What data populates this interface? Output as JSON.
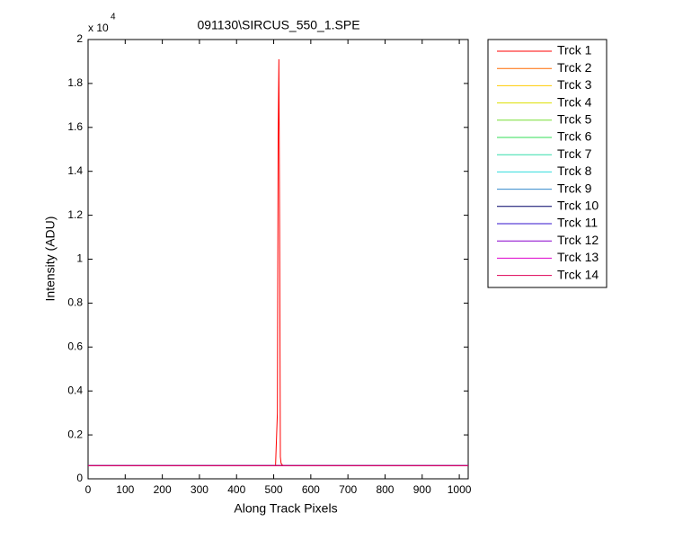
{
  "chart_data": {
    "type": "line",
    "title": "091130\\SIRCUS_550_1.SPE",
    "x_label": "Along Track Pixels",
    "y_label": "Intensity (ADU)",
    "y_multiplier": {
      "base": "x 10",
      "exponent": "4"
    },
    "xlim": [
      0,
      1024
    ],
    "ylim": [
      0,
      2
    ],
    "xticks": [
      0,
      100,
      200,
      300,
      400,
      500,
      600,
      700,
      800,
      900,
      1000
    ],
    "yticks": [
      0,
      0.2,
      0.4,
      0.6,
      0.8,
      1,
      1.2,
      1.4,
      1.6,
      1.8,
      2
    ],
    "legend": "outside-right",
    "x": [
      0,
      505,
      510,
      512,
      514,
      516,
      518,
      520,
      525,
      1024
    ],
    "series": [
      {
        "name": "Trck 1",
        "color": "#ff0000",
        "values": [
          0.06,
          0.06,
          0.3,
          1.55,
          1.91,
          1.14,
          0.1,
          0.07,
          0.06,
          0.06
        ]
      },
      {
        "name": "Trck 2",
        "color": "#ff6a00",
        "values": [
          0.06,
          0.06,
          0.06,
          0.06,
          0.06,
          0.06,
          0.06,
          0.06,
          0.06,
          0.06
        ]
      },
      {
        "name": "Trck 3",
        "color": "#ffcc00",
        "values": [
          0.06,
          0.06,
          0.06,
          0.06,
          0.06,
          0.06,
          0.06,
          0.06,
          0.06,
          0.06
        ]
      },
      {
        "name": "Trck 4",
        "color": "#dde000",
        "values": [
          0.06,
          0.06,
          0.06,
          0.06,
          0.06,
          0.06,
          0.06,
          0.06,
          0.06,
          0.06
        ]
      },
      {
        "name": "Trck 5",
        "color": "#77dd33",
        "values": [
          0.06,
          0.06,
          0.06,
          0.06,
          0.06,
          0.06,
          0.06,
          0.06,
          0.06,
          0.06
        ]
      },
      {
        "name": "Trck 6",
        "color": "#33dd55",
        "values": [
          0.06,
          0.06,
          0.06,
          0.06,
          0.06,
          0.06,
          0.06,
          0.06,
          0.06,
          0.06
        ]
      },
      {
        "name": "Trck 7",
        "color": "#33ddaa",
        "values": [
          0.06,
          0.06,
          0.06,
          0.06,
          0.06,
          0.06,
          0.06,
          0.06,
          0.06,
          0.06
        ]
      },
      {
        "name": "Trck 8",
        "color": "#33dddd",
        "values": [
          0.06,
          0.06,
          0.06,
          0.06,
          0.06,
          0.06,
          0.06,
          0.06,
          0.06,
          0.06
        ]
      },
      {
        "name": "Trck 9",
        "color": "#3388cc",
        "values": [
          0.06,
          0.06,
          0.06,
          0.06,
          0.06,
          0.06,
          0.06,
          0.06,
          0.06,
          0.06
        ]
      },
      {
        "name": "Trck 10",
        "color": "#000066",
        "values": [
          0.06,
          0.06,
          0.06,
          0.06,
          0.06,
          0.06,
          0.06,
          0.06,
          0.06,
          0.06
        ]
      },
      {
        "name": "Trck 11",
        "color": "#3311cc",
        "values": [
          0.06,
          0.06,
          0.06,
          0.06,
          0.06,
          0.06,
          0.06,
          0.06,
          0.06,
          0.06
        ]
      },
      {
        "name": "Trck 12",
        "color": "#8800cc",
        "values": [
          0.06,
          0.06,
          0.06,
          0.06,
          0.06,
          0.06,
          0.06,
          0.06,
          0.06,
          0.06
        ]
      },
      {
        "name": "Trck 13",
        "color": "#dd00cc",
        "values": [
          0.06,
          0.06,
          0.06,
          0.06,
          0.06,
          0.06,
          0.06,
          0.06,
          0.06,
          0.06
        ]
      },
      {
        "name": "Trck 14",
        "color": "#dd0055",
        "values": [
          0.06,
          0.06,
          0.06,
          0.06,
          0.06,
          0.06,
          0.06,
          0.06,
          0.06,
          0.06
        ]
      }
    ]
  }
}
